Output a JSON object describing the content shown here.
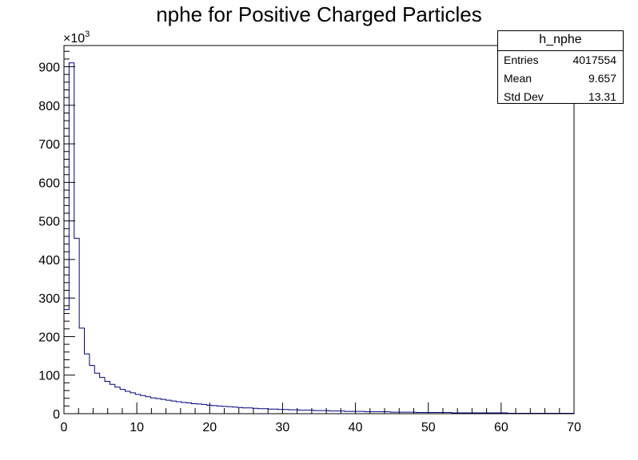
{
  "chart_data": {
    "type": "bar",
    "title": "nphe for Positive Charged Particles",
    "xlabel": "",
    "ylabel": "",
    "y_multiplier_label": "×10",
    "y_multiplier_exponent": "3",
    "xlim": [
      0,
      70
    ],
    "ylim": [
      0,
      955
    ],
    "x_tick_labels": [
      "0",
      "10",
      "20",
      "30",
      "40",
      "50",
      "60",
      "70"
    ],
    "y_tick_labels": [
      "0",
      "100",
      "200",
      "300",
      "400",
      "500",
      "600",
      "700",
      "800",
      "900"
    ],
    "bin_width": 0.7,
    "values_thousands": [
      270,
      910,
      455,
      222,
      155,
      125,
      105,
      94,
      84,
      76,
      69,
      63,
      58,
      54,
      50,
      47,
      44,
      41,
      39,
      37,
      35,
      33,
      31,
      29,
      28,
      26,
      25,
      24,
      22,
      21,
      20,
      19,
      18,
      17,
      16,
      15,
      15,
      14,
      13,
      13,
      12,
      12,
      11,
      11,
      10,
      10,
      9,
      9,
      9,
      8,
      8,
      8,
      7,
      7,
      7,
      6,
      6,
      6,
      6,
      5,
      5,
      5,
      5,
      5,
      4,
      4,
      4,
      4,
      4,
      3,
      3,
      3,
      3,
      3,
      3,
      3,
      2,
      2,
      2,
      2,
      2,
      2,
      2,
      2,
      2,
      2,
      2,
      1,
      1,
      1,
      1,
      1,
      1,
      1,
      1,
      1,
      1,
      1,
      1,
      1
    ],
    "line_color": "#000080",
    "grid": false,
    "legend": "none"
  },
  "stats": {
    "name": "h_nphe",
    "entries_label": "Entries",
    "entries_value": "4017554",
    "mean_label": "Mean",
    "mean_value": "9.657",
    "stddev_label": "Std Dev",
    "stddev_value": "13.31"
  }
}
